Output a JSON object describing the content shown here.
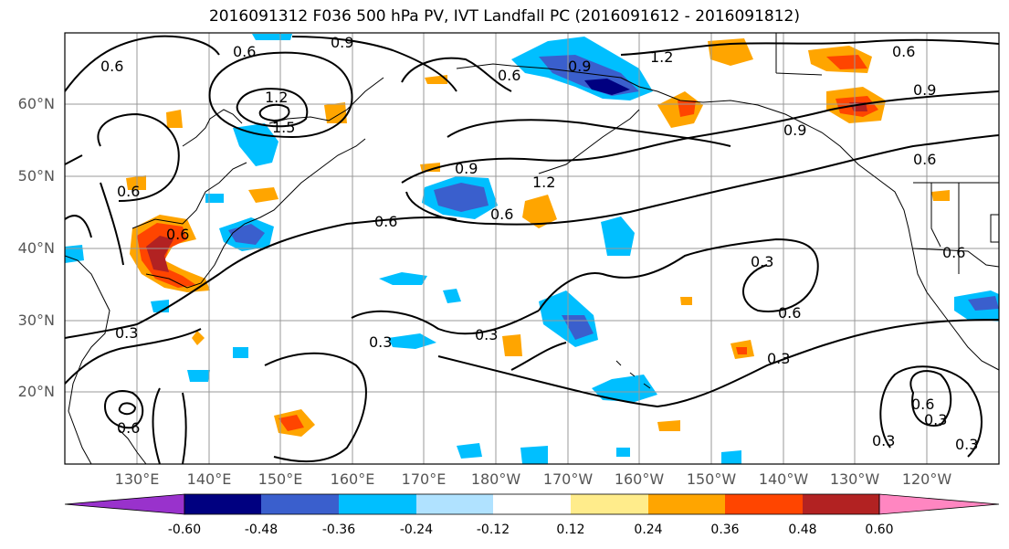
{
  "title": "2016091312 F036 500 hPa PV, IVT Landfall PC (2016091612 - 2016091812)",
  "lat_labels": [
    "60°N",
    "50°N",
    "40°N",
    "30°N",
    "20°N"
  ],
  "lon_labels": [
    "130°E",
    "140°E",
    "150°E",
    "160°E",
    "170°E",
    "180°W",
    "170°W",
    "160°W",
    "150°W",
    "140°W",
    "130°W",
    "120°W"
  ],
  "colorbar": {
    "colors": [
      "#9932cc",
      "#000080",
      "#3a5fcd",
      "#00bfff",
      "#b0e2ff",
      "#ffffff",
      "#ffec8b",
      "#ffa500",
      "#ff4500",
      "#b22222",
      "#ff86c1"
    ],
    "tick_labels": [
      "-0.60",
      "-0.48",
      "-0.36",
      "-0.24",
      "-0.12",
      "0.12",
      "0.24",
      "0.36",
      "0.48",
      "0.60"
    ]
  },
  "contour_labels": [
    "0.6",
    "0.9",
    "1.2",
    "1.5",
    "0.3"
  ]
}
